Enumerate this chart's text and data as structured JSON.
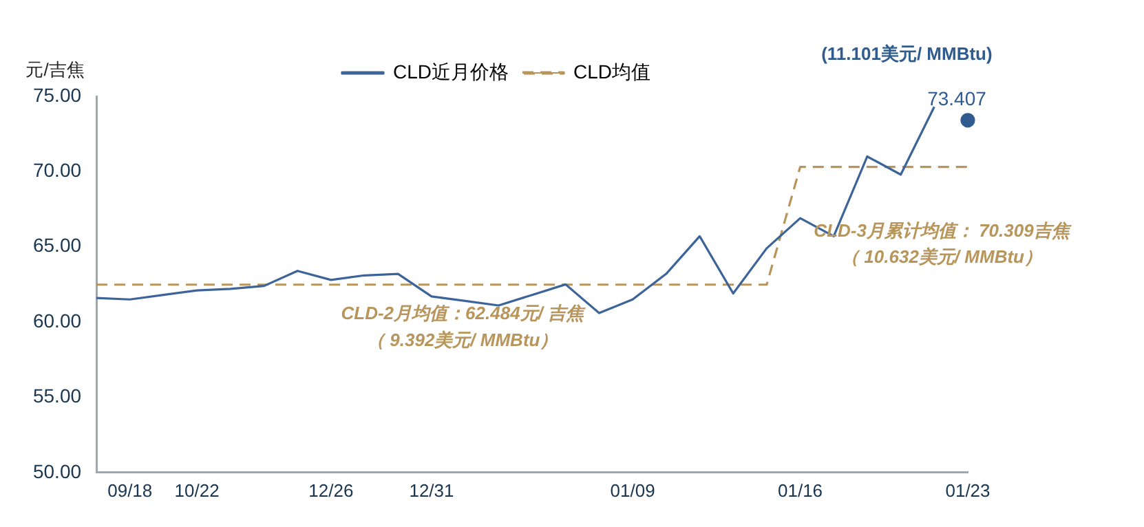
{
  "chart_data": {
    "type": "line",
    "ylabel": "元/吉焦",
    "categories": [
      null,
      "09/18",
      null,
      "10/22",
      null,
      null,
      null,
      "12/26",
      null,
      null,
      "12/31",
      null,
      null,
      null,
      null,
      null,
      "01/09",
      null,
      null,
      null,
      null,
      "01/16",
      null,
      null,
      null,
      null,
      "01/23"
    ],
    "series": [
      {
        "name": "CLD近月价格",
        "color": "#3d6499",
        "line_style": "solid",
        "marker": "none",
        "values": [
          61.6,
          61.5,
          61.8,
          62.1,
          62.2,
          62.4,
          63.4,
          62.8,
          63.1,
          63.2,
          61.7,
          61.4,
          61.1,
          61.8,
          62.5,
          60.6,
          61.5,
          63.2,
          65.7,
          61.9,
          64.9,
          66.9,
          65.7,
          71.0,
          69.8,
          74.3,
          null
        ]
      },
      {
        "name": "CLD均值",
        "color": "#b8955a",
        "line_style": "dashed",
        "marker": "none",
        "values": [
          62.484,
          62.484,
          62.484,
          62.484,
          62.484,
          62.484,
          62.484,
          62.484,
          62.484,
          62.484,
          62.484,
          62.484,
          62.484,
          62.484,
          62.484,
          62.484,
          62.484,
          62.484,
          62.484,
          62.484,
          62.484,
          70.309,
          70.309,
          70.309,
          70.309,
          70.309,
          70.309
        ]
      },
      {
        "color": "#2f5b8e",
        "marker": "circle",
        "line_style": "none",
        "values": [
          null,
          null,
          null,
          null,
          null,
          null,
          null,
          null,
          null,
          null,
          null,
          null,
          null,
          null,
          null,
          null,
          null,
          null,
          null,
          null,
          null,
          null,
          null,
          null,
          null,
          null,
          73.407
        ],
        "value_labels": [
          null,
          null,
          null,
          null,
          null,
          null,
          null,
          null,
          null,
          null,
          null,
          null,
          null,
          null,
          null,
          null,
          null,
          null,
          null,
          null,
          null,
          null,
          null,
          null,
          null,
          null,
          "73.407"
        ]
      }
    ],
    "ylim": [
      50,
      75
    ],
    "yticks": [
      {
        "value": 50,
        "label": "50.00"
      },
      {
        "value": 55,
        "label": "55.00"
      },
      {
        "value": 60,
        "label": "60.00"
      },
      {
        "value": 65,
        "label": "65.00"
      },
      {
        "value": 70,
        "label": "70.00"
      },
      {
        "value": 75,
        "label": "75.00"
      }
    ],
    "grid": false,
    "legend": "top",
    "annotations": [
      "CLD-2月均值：62.484元/ 吉焦",
      "（ 9.392美元/ MMBtu）",
      "CLD-3月累计均值： 70.309吉焦",
      "（ 10.632美元/ MMBtu）",
      "(11.101美元/ MMBtu)"
    ]
  }
}
